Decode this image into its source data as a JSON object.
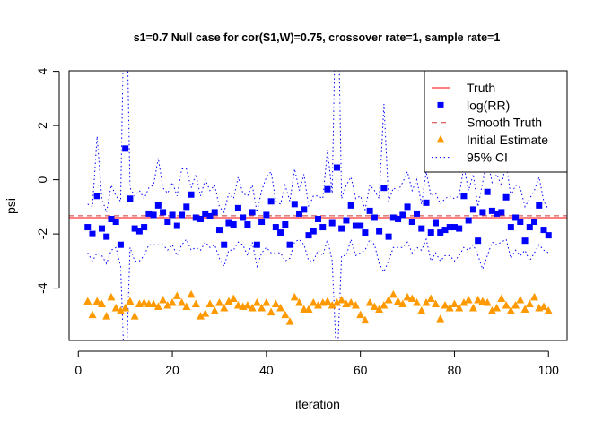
{
  "chart_data": {
    "type": "scatter",
    "title": "s1=0.7 Null case for cor(S1,W)=0.75, crossover rate=1, sample rate=1",
    "xlabel": "iteration",
    "ylabel": "psi",
    "xlim": [
      -1.96,
      103.96
    ],
    "ylim": [
      -5.93,
      4.02
    ],
    "x_ticks": [
      0,
      20,
      40,
      60,
      80,
      100
    ],
    "y_ticks": [
      -4,
      -2,
      0,
      2,
      4
    ],
    "x_tick_labels": [
      "0",
      "20",
      "40",
      "60",
      "80",
      "100"
    ],
    "y_tick_labels": [
      "-4",
      "-2",
      "0",
      "2",
      "4"
    ],
    "legend_position": "top-right",
    "x": [
      2,
      3,
      4,
      5,
      6,
      7,
      8,
      9,
      10,
      11,
      12,
      13,
      14,
      15,
      16,
      17,
      18,
      19,
      20,
      21,
      22,
      23,
      24,
      25,
      26,
      27,
      28,
      29,
      30,
      31,
      32,
      33,
      34,
      35,
      36,
      37,
      38,
      39,
      40,
      41,
      42,
      43,
      44,
      45,
      46,
      47,
      48,
      49,
      50,
      51,
      52,
      53,
      54,
      55,
      56,
      57,
      58,
      59,
      60,
      61,
      62,
      63,
      64,
      65,
      66,
      67,
      68,
      69,
      70,
      71,
      72,
      73,
      74,
      75,
      76,
      77,
      78,
      79,
      80,
      81,
      82,
      83,
      84,
      85,
      86,
      87,
      88,
      89,
      90,
      91,
      92,
      93,
      94,
      95,
      96,
      97,
      98,
      99,
      100
    ],
    "series": [
      {
        "name": "Truth",
        "kind": "hline",
        "color": "#ff0000",
        "dash": "solid",
        "value": -1.4
      },
      {
        "name": "log(RR)",
        "kind": "points",
        "marker": "square",
        "color": "#0000ff",
        "values": [
          -1.75,
          -2.0,
          -0.6,
          -1.8,
          -2.1,
          -1.45,
          -1.55,
          -2.4,
          1.15,
          -0.7,
          -1.8,
          -1.9,
          -1.75,
          -1.25,
          -1.3,
          -0.95,
          -1.2,
          -1.55,
          -1.3,
          -1.7,
          -1.3,
          -1.0,
          -0.55,
          -1.4,
          -1.45,
          -1.25,
          -1.35,
          -1.2,
          -1.85,
          -2.4,
          -1.6,
          -1.65,
          -1.05,
          -1.4,
          -1.65,
          -1.2,
          -2.4,
          -1.55,
          -1.3,
          -0.8,
          -1.75,
          -1.95,
          -1.65,
          -2.4,
          -0.9,
          -1.25,
          -1.1,
          -2.05,
          -1.9,
          -1.45,
          -1.75,
          -0.35,
          -1.6,
          0.45,
          -1.8,
          -1.5,
          -0.95,
          -1.7,
          -1.7,
          -1.95,
          -1.15,
          -1.4,
          -1.9,
          -0.3,
          -2.1,
          -1.4,
          -1.45,
          -1.3,
          -1.0,
          -1.55,
          -1.25,
          -1.8,
          -0.85,
          -1.95,
          -1.6,
          -1.95,
          -1.85,
          -1.75,
          -1.75,
          -1.8,
          -0.6,
          -1.5,
          -1.1,
          -2.25,
          -1.2,
          -0.45,
          -1.15,
          -1.25,
          -1.2,
          -0.65,
          -1.75,
          -1.4,
          -1.55,
          -2.25,
          -1.75,
          -1.55,
          -0.95,
          -1.85,
          -2.05
        ]
      },
      {
        "name": "Smooth Truth",
        "kind": "hline",
        "color": "#cc3333",
        "dash": "dashed",
        "value": -1.33
      },
      {
        "name": "Initial Estimate",
        "kind": "points",
        "marker": "triangle",
        "color": "#ff9900",
        "values": [
          -4.5,
          -5.0,
          -4.5,
          -4.6,
          -5.05,
          -4.35,
          -4.75,
          -4.85,
          -4.75,
          -4.5,
          -5.05,
          -4.6,
          -4.55,
          -4.6,
          -4.6,
          -4.7,
          -4.45,
          -4.65,
          -4.55,
          -4.3,
          -4.55,
          -4.7,
          -4.25,
          -4.6,
          -5.05,
          -4.95,
          -4.6,
          -4.85,
          -4.55,
          -4.75,
          -4.5,
          -4.4,
          -4.65,
          -4.7,
          -4.65,
          -4.75,
          -4.55,
          -4.75,
          -4.55,
          -4.9,
          -4.6,
          -4.75,
          -5.0,
          -5.25,
          -4.35,
          -4.55,
          -4.8,
          -4.8,
          -4.55,
          -4.65,
          -4.55,
          -4.5,
          -4.65,
          -4.55,
          -4.45,
          -4.6,
          -4.55,
          -4.65,
          -5.0,
          -5.2,
          -4.55,
          -4.7,
          -4.8,
          -4.65,
          -4.45,
          -4.25,
          -4.5,
          -4.6,
          -4.35,
          -4.4,
          -4.55,
          -4.85,
          -4.55,
          -4.4,
          -4.6,
          -5.15,
          -4.65,
          -4.75,
          -4.6,
          -4.75,
          -4.55,
          -4.45,
          -4.75,
          -4.45,
          -4.5,
          -4.55,
          -4.85,
          -4.75,
          -4.4,
          -4.65,
          -4.85,
          -4.65,
          -4.45,
          -4.8,
          -4.6,
          -4.35,
          -4.75,
          -4.7,
          -4.85
        ]
      },
      {
        "name": "95% CI",
        "kind": "band-lines",
        "color": "#0000ff",
        "dash": "dotted",
        "upper": [
          -0.9,
          -1.0,
          1.6,
          -0.7,
          -1.2,
          -0.2,
          -0.6,
          -0.8,
          9.0,
          -0.3,
          -0.6,
          -0.4,
          -0.7,
          -0.3,
          -0.2,
          0.8,
          -0.3,
          -0.5,
          -0.1,
          -0.6,
          0.4,
          0.4,
          -0.3,
          0.2,
          -0.6,
          0.0,
          -0.4,
          -0.2,
          -1.0,
          -1.2,
          -0.5,
          -0.7,
          0.1,
          -0.5,
          -0.6,
          -0.2,
          -1.2,
          -0.4,
          0.1,
          0.3,
          -0.8,
          -0.9,
          -0.2,
          -0.8,
          0.4,
          -0.4,
          0.2,
          -1.0,
          -0.6,
          -0.6,
          -0.7,
          1.1,
          -0.5,
          9.0,
          -0.7,
          -0.2,
          0.1,
          -0.7,
          -0.6,
          -1.1,
          -0.2,
          -0.4,
          -0.7,
          2.8,
          -0.8,
          -0.3,
          -0.4,
          -0.1,
          0.3,
          -0.4,
          0.0,
          -0.9,
          0.3,
          -0.6,
          -0.5,
          -0.9,
          -0.7,
          -0.6,
          -0.7,
          -0.6,
          0.5,
          -0.4,
          0.2,
          -1.0,
          -0.1,
          0.8,
          -0.1,
          0.2,
          -0.2,
          0.6,
          -0.6,
          -0.2,
          -0.3,
          -1.0,
          -0.7,
          -0.4,
          0.1,
          -0.8,
          -1.1
        ],
        "lower": [
          -2.7,
          -3.0,
          -2.7,
          -2.8,
          -3.1,
          -2.6,
          -2.5,
          -3.2,
          -8.0,
          -2.5,
          -3.0,
          -3.0,
          -2.8,
          -2.4,
          -2.4,
          -2.4,
          -2.4,
          -2.6,
          -2.4,
          -2.8,
          -2.4,
          -2.2,
          -2.6,
          -2.5,
          -2.6,
          -2.3,
          -2.5,
          -2.4,
          -2.9,
          -3.2,
          -2.6,
          -2.6,
          -2.3,
          -2.4,
          -2.8,
          -2.3,
          -3.2,
          -2.7,
          -2.5,
          -2.7,
          -2.7,
          -2.7,
          -3.0,
          -2.9,
          -2.3,
          -2.2,
          -2.4,
          -3.0,
          -3.0,
          -2.6,
          -2.8,
          -2.2,
          -3.0,
          -7.0,
          -2.8,
          -2.8,
          -2.2,
          -2.8,
          -2.7,
          -2.6,
          -2.2,
          -2.4,
          -3.1,
          -3.4,
          -3.0,
          -2.5,
          -2.5,
          -2.5,
          -2.3,
          -2.7,
          -2.5,
          -2.6,
          -2.2,
          -3.0,
          -2.7,
          -3.0,
          -2.8,
          -2.8,
          -3.0,
          -2.8,
          -2.5,
          -2.6,
          -2.4,
          -2.8,
          -3.3,
          -2.8,
          -2.3,
          -2.4,
          -2.3,
          -2.2,
          -2.9,
          -2.6,
          -2.8,
          -2.6,
          -3.0,
          -2.7,
          -2.4,
          -2.6,
          -2.7
        ]
      }
    ]
  }
}
